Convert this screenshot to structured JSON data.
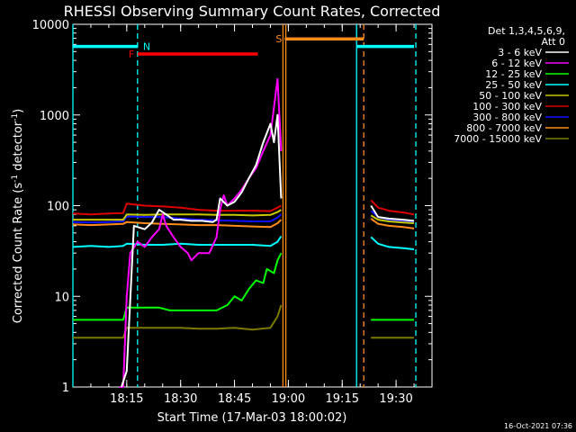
{
  "chart_data": {
    "type": "line",
    "title": "RHESSI Observing Summary Count Rates, Corrected",
    "xlabel": "Start Time (17-Mar-03 18:00:02)",
    "ylabel_main": "Corrected Count Rate (s",
    "ylabel_sup1": "-1",
    "ylabel_mid": " detector",
    "ylabel_sup2": "-1",
    "ylabel_end": ")",
    "yscale": "log",
    "ylim": [
      1,
      10000
    ],
    "xlim_min": [
      0,
      100
    ],
    "x_ticks": [
      {
        "t": 15,
        "label": "18:15"
      },
      {
        "t": 30,
        "label": "18:30"
      },
      {
        "t": 45,
        "label": "18:45"
      },
      {
        "t": 60,
        "label": "19:00"
      },
      {
        "t": 75,
        "label": "19:15"
      },
      {
        "t": 90,
        "label": "19:30"
      }
    ],
    "y_ticks": [
      {
        "v": 1,
        "label": "1"
      },
      {
        "v": 10,
        "label": "10"
      },
      {
        "v": 100,
        "label": "100"
      },
      {
        "v": 1000,
        "label": "1000"
      },
      {
        "v": 10000,
        "label": "10000"
      }
    ],
    "legend_header": [
      "Det 1,3,4,5,6,9,",
      "Att 0"
    ],
    "series": [
      {
        "name": "3 - 6 keV",
        "color": "#ffffff",
        "segments": [
          [
            [
              13.5,
              1
            ],
            [
              15,
              1.5
            ],
            [
              17,
              60
            ],
            [
              20,
              55
            ],
            [
              22,
              65
            ],
            [
              24,
              90
            ],
            [
              26,
              80
            ],
            [
              28,
              70
            ],
            [
              30,
              70
            ],
            [
              33,
              68
            ],
            [
              36,
              68
            ],
            [
              39,
              66
            ],
            [
              40,
              70
            ],
            [
              41,
              120
            ],
            [
              43,
              100
            ],
            [
              45,
              110
            ],
            [
              47,
              140
            ],
            [
              49,
              200
            ],
            [
              51,
              280
            ],
            [
              53,
              500
            ],
            [
              55,
              800
            ],
            [
              56,
              500
            ],
            [
              57,
              1000
            ],
            [
              58,
              120
            ]
          ],
          [
            [
              83,
              100
            ],
            [
              85,
              75
            ],
            [
              88,
              72
            ],
            [
              92,
              70
            ],
            [
              95,
              68
            ]
          ]
        ]
      },
      {
        "name": "6 - 12 keV",
        "color": "#ff00ff",
        "segments": [
          [
            [
              13,
              1
            ],
            [
              14,
              1
            ],
            [
              15,
              10
            ],
            [
              16,
              30
            ],
            [
              18,
              40
            ],
            [
              20,
              35
            ],
            [
              22,
              45
            ],
            [
              24,
              55
            ],
            [
              25,
              80
            ],
            [
              26,
              60
            ],
            [
              28,
              45
            ],
            [
              30,
              35
            ],
            [
              32,
              30
            ],
            [
              33,
              25
            ],
            [
              35,
              30
            ],
            [
              38,
              30
            ],
            [
              40,
              45
            ],
            [
              41,
              90
            ],
            [
              42,
              130
            ],
            [
              43,
              100
            ],
            [
              45,
              120
            ],
            [
              47,
              150
            ],
            [
              49,
              200
            ],
            [
              51,
              260
            ],
            [
              53,
              400
            ],
            [
              55,
              600
            ],
            [
              57,
              2500
            ],
            [
              58,
              400
            ]
          ]
        ]
      },
      {
        "name": "12 - 25 keV",
        "color": "#00ff00",
        "segments": [
          [
            [
              0,
              5.5
            ],
            [
              5,
              5.5
            ],
            [
              10,
              5.5
            ],
            [
              14,
              5.5
            ],
            [
              15,
              7.5
            ],
            [
              20,
              7.5
            ],
            [
              24,
              7.5
            ],
            [
              27,
              7
            ],
            [
              30,
              7
            ],
            [
              35,
              7
            ],
            [
              40,
              7
            ],
            [
              43,
              8
            ],
            [
              45,
              10
            ],
            [
              47,
              9
            ],
            [
              49,
              12
            ],
            [
              51,
              15
            ],
            [
              53,
              14
            ],
            [
              54,
              20
            ],
            [
              56,
              18
            ],
            [
              57,
              25
            ],
            [
              58,
              30
            ]
          ],
          [
            [
              83,
              5.5
            ],
            [
              88,
              5.5
            ],
            [
              92,
              5.5
            ],
            [
              95,
              5.5
            ]
          ]
        ]
      },
      {
        "name": "25 - 50 keV",
        "color": "#00ffff",
        "segments": [
          [
            [
              0,
              35
            ],
            [
              5,
              36
            ],
            [
              10,
              35
            ],
            [
              14,
              36
            ],
            [
              15,
              38
            ],
            [
              20,
              37
            ],
            [
              25,
              37
            ],
            [
              30,
              38
            ],
            [
              35,
              37
            ],
            [
              40,
              37
            ],
            [
              45,
              37
            ],
            [
              50,
              37
            ],
            [
              55,
              36
            ],
            [
              57,
              40
            ],
            [
              58,
              46
            ]
          ],
          [
            [
              83,
              45
            ],
            [
              85,
              38
            ],
            [
              88,
              35
            ],
            [
              92,
              34
            ],
            [
              95,
              33
            ]
          ]
        ]
      },
      {
        "name": "50 - 100 keV",
        "color": "#c8c800",
        "segments": [
          [
            [
              0,
              70
            ],
            [
              5,
              70
            ],
            [
              10,
              70
            ],
            [
              14,
              70
            ],
            [
              15,
              80
            ],
            [
              20,
              79
            ],
            [
              25,
              80
            ],
            [
              30,
              80
            ],
            [
              35,
              80
            ],
            [
              40,
              79
            ],
            [
              45,
              79
            ],
            [
              50,
              78
            ],
            [
              55,
              79
            ],
            [
              57,
              85
            ],
            [
              58,
              90
            ]
          ],
          [
            [
              83,
              78
            ],
            [
              85,
              70
            ],
            [
              88,
              67
            ],
            [
              92,
              65
            ],
            [
              95,
              64
            ]
          ]
        ]
      },
      {
        "name": "100 - 300 keV",
        "color": "#dd0000",
        "segments": [
          [
            [
              0,
              82
            ],
            [
              5,
              80
            ],
            [
              10,
              82
            ],
            [
              14,
              83
            ],
            [
              15,
              105
            ],
            [
              20,
              100
            ],
            [
              25,
              98
            ],
            [
              30,
              95
            ],
            [
              35,
              90
            ],
            [
              40,
              88
            ],
            [
              45,
              88
            ],
            [
              50,
              88
            ],
            [
              55,
              87
            ],
            [
              57,
              95
            ],
            [
              58,
              100
            ]
          ],
          [
            [
              83,
              115
            ],
            [
              85,
              95
            ],
            [
              88,
              88
            ],
            [
              92,
              84
            ],
            [
              95,
              80
            ]
          ]
        ]
      },
      {
        "name": "300 - 800 keV",
        "color": "#1010ff",
        "segments": [
          [
            [
              0,
              66
            ],
            [
              5,
              65
            ],
            [
              10,
              66
            ],
            [
              14,
              67
            ],
            [
              15,
              76
            ],
            [
              20,
              75
            ],
            [
              25,
              75
            ],
            [
              30,
              72
            ],
            [
              35,
              70
            ],
            [
              40,
              69
            ],
            [
              45,
              68
            ],
            [
              50,
              67
            ],
            [
              55,
              67
            ],
            [
              57,
              74
            ],
            [
              58,
              80
            ]
          ],
          [
            [
              83,
              88
            ],
            [
              85,
              75
            ],
            [
              88,
              70
            ],
            [
              92,
              68
            ],
            [
              95,
              66
            ]
          ]
        ]
      },
      {
        "name": "800 - 7000 keV",
        "color": "#ff8c1a",
        "segments": [
          [
            [
              0,
              62
            ],
            [
              5,
              61
            ],
            [
              10,
              62
            ],
            [
              14,
              63
            ],
            [
              15,
              66
            ],
            [
              20,
              64
            ],
            [
              25,
              63
            ],
            [
              30,
              62
            ],
            [
              35,
              61
            ],
            [
              40,
              61
            ],
            [
              45,
              60
            ],
            [
              50,
              59
            ],
            [
              55,
              58
            ],
            [
              57,
              64
            ],
            [
              58,
              70
            ]
          ],
          [
            [
              83,
              72
            ],
            [
              85,
              63
            ],
            [
              88,
              60
            ],
            [
              92,
              58
            ],
            [
              95,
              56
            ]
          ]
        ]
      },
      {
        "name": "7000 - 15000 keV",
        "color": "#7a7a00",
        "segments": [
          [
            [
              0,
              3.5
            ],
            [
              5,
              3.5
            ],
            [
              10,
              3.5
            ],
            [
              14,
              3.5
            ],
            [
              15,
              4.5
            ],
            [
              20,
              4.5
            ],
            [
              25,
              4.5
            ],
            [
              30,
              4.5
            ],
            [
              35,
              4.4
            ],
            [
              40,
              4.4
            ],
            [
              45,
              4.5
            ],
            [
              50,
              4.3
            ],
            [
              55,
              4.5
            ],
            [
              57,
              6
            ],
            [
              58,
              8
            ]
          ],
          [
            [
              83,
              3.5
            ],
            [
              88,
              3.5
            ],
            [
              92,
              3.5
            ],
            [
              95,
              3.5
            ]
          ]
        ]
      }
    ],
    "flags": [
      {
        "label": "N",
        "color": "#00ffff",
        "line_at": 18,
        "bars": [
          [
            0,
            18
          ],
          [
            79,
            95
          ]
        ],
        "level": 5700
      },
      {
        "label": "F",
        "color": "#ff0000",
        "line_at": null,
        "bars": [
          [
            18,
            51.5
          ]
        ],
        "level": 4700
      },
      {
        "label": "S",
        "color": "#ff8c1a",
        "line_at": null,
        "bars": [
          [
            59,
            81
          ]
        ],
        "level": 6900
      }
    ],
    "vlines": [
      {
        "t": 0,
        "color": "#00ffff",
        "style": "solid"
      },
      {
        "t": 18,
        "color": "#00ffff",
        "style": "dashed"
      },
      {
        "t": 58.5,
        "color": "#ff8c1a",
        "style": "solid"
      },
      {
        "t": 59.3,
        "color": "#ff8c1a",
        "style": "solid"
      },
      {
        "t": 79,
        "color": "#00ffff",
        "style": "solid"
      },
      {
        "t": 81,
        "color": "#ff8c1a",
        "style": "dashed"
      },
      {
        "t": 95.5,
        "color": "#00ffff",
        "style": "dashed"
      }
    ],
    "timestamp": "16-Oct-2021 07:36"
  }
}
